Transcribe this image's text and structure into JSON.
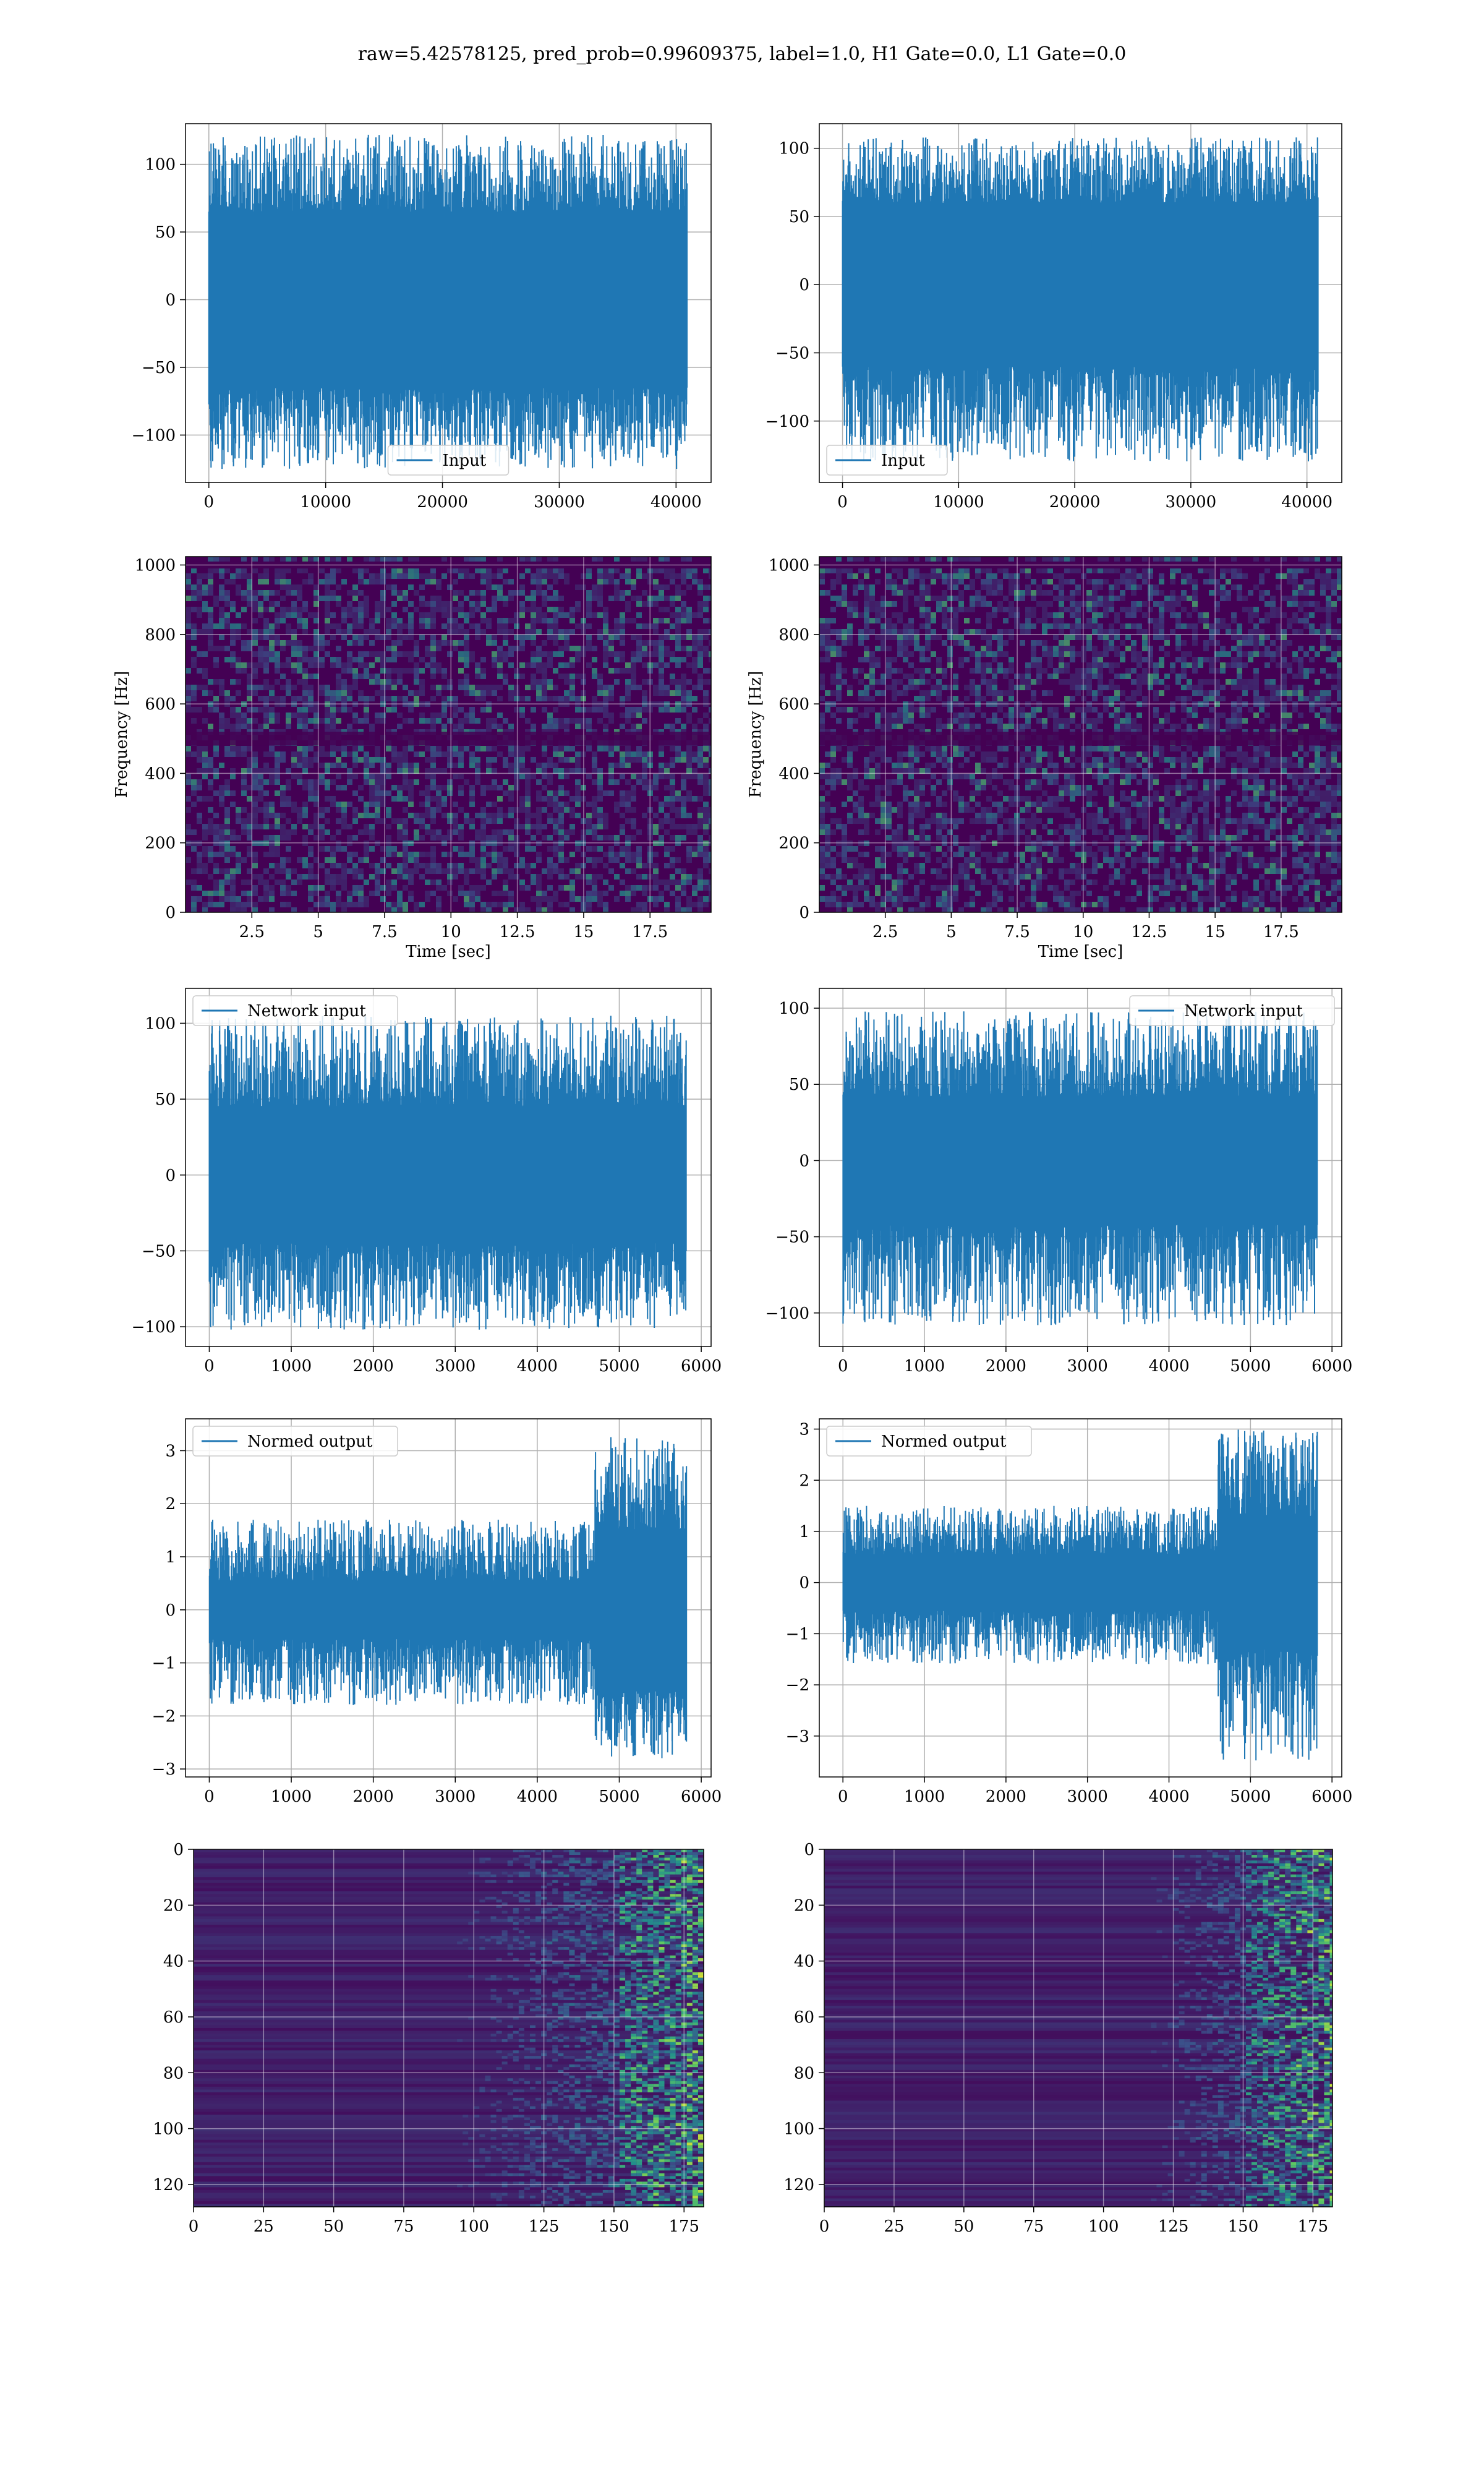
{
  "title": "raw=5.42578125, pred_prob=0.99609375, label=1.0, H1 Gate=0.0, L1 Gate=0.0",
  "colors": {
    "line": "#1f77b4",
    "grid": "#b0b0b0",
    "viridis_low": "#440154",
    "viridis_mid": "#21918c",
    "viridis_high": "#fde725"
  },
  "chart_data": [
    {
      "id": "input-h1",
      "type": "line",
      "row": 1,
      "col": 1,
      "legend": "Input",
      "legend_loc": "lower center",
      "xlim": [
        -2000,
        43000
      ],
      "ylim": [
        -135,
        130
      ],
      "xticks": [
        0,
        10000,
        20000,
        30000,
        40000
      ],
      "yticks": [
        -100,
        -50,
        0,
        50,
        100
      ],
      "x_range": [
        0,
        40960
      ],
      "band": [
        -65,
        65
      ],
      "spike_max": 122,
      "spike_min": -125
    },
    {
      "id": "input-l1",
      "type": "line",
      "row": 1,
      "col": 2,
      "legend": "Input",
      "legend_loc": "lower left",
      "xlim": [
        -2000,
        43000
      ],
      "ylim": [
        -145,
        118
      ],
      "xticks": [
        0,
        10000,
        20000,
        30000,
        40000
      ],
      "yticks": [
        -100,
        -50,
        0,
        50,
        100
      ],
      "x_range": [
        0,
        40960
      ],
      "band": [
        -60,
        60
      ],
      "spike_max": 108,
      "spike_min": -130
    },
    {
      "id": "spec-h1",
      "type": "heatmap",
      "row": 2,
      "col": 1,
      "xlabel": "Time [sec]",
      "ylabel": "Frequency [Hz]",
      "xlim": [
        0,
        19.8
      ],
      "ylim": [
        0,
        1024
      ],
      "xticks": [
        2.5,
        5.0,
        7.5,
        10.0,
        12.5,
        15.0,
        17.5
      ],
      "yticks": [
        0,
        200,
        400,
        600,
        800,
        1000
      ]
    },
    {
      "id": "spec-l1",
      "type": "heatmap",
      "row": 2,
      "col": 2,
      "xlabel": "Time [sec]",
      "ylabel": "Frequency [Hz]",
      "xlim": [
        0,
        19.8
      ],
      "ylim": [
        0,
        1024
      ],
      "xticks": [
        2.5,
        5.0,
        7.5,
        10.0,
        12.5,
        15.0,
        17.5
      ],
      "yticks": [
        0,
        200,
        400,
        600,
        800,
        1000
      ]
    },
    {
      "id": "netin-h1",
      "type": "line",
      "row": 3,
      "col": 1,
      "legend": "Network input",
      "legend_loc": "upper left",
      "xlim": [
        -290,
        6120
      ],
      "ylim": [
        -113,
        123
      ],
      "xticks": [
        0,
        1000,
        2000,
        3000,
        4000,
        5000,
        6000
      ],
      "yticks": [
        -100,
        -50,
        0,
        50,
        100
      ],
      "x_range": [
        0,
        5820
      ],
      "band": [
        -45,
        45
      ],
      "spike_max": 105,
      "spike_min": -102
    },
    {
      "id": "netin-l1",
      "type": "line",
      "row": 3,
      "col": 2,
      "legend": "Network input",
      "legend_loc": "upper right",
      "xlim": [
        -290,
        6120
      ],
      "ylim": [
        -122,
        113
      ],
      "xticks": [
        0,
        1000,
        2000,
        3000,
        4000,
        5000,
        6000
      ],
      "yticks": [
        -100,
        -50,
        0,
        50,
        100
      ],
      "x_range": [
        0,
        5820
      ],
      "band": [
        -42,
        42
      ],
      "spike_max": 98,
      "spike_min": -108
    },
    {
      "id": "normout-h1",
      "type": "line",
      "row": 4,
      "col": 1,
      "legend": "Normed output",
      "legend_loc": "upper left",
      "xlim": [
        -290,
        6120
      ],
      "ylim": [
        -3.15,
        3.6
      ],
      "xticks": [
        0,
        1000,
        2000,
        3000,
        4000,
        5000,
        6000
      ],
      "yticks": [
        -3,
        -2,
        -1,
        0,
        1,
        2,
        3
      ],
      "x_range": [
        0,
        5820
      ],
      "band": [
        -0.55,
        0.55
      ],
      "spike_max": 1.7,
      "spike_min": -1.8,
      "burst_start": 4700,
      "burst_band": [
        -1.5,
        1.5
      ],
      "burst_max": 3.3,
      "burst_min": -2.8
    },
    {
      "id": "normout-l1",
      "type": "line",
      "row": 4,
      "col": 2,
      "legend": "Normed output",
      "legend_loc": "upper left",
      "xlim": [
        -290,
        6120
      ],
      "ylim": [
        -3.8,
        3.2
      ],
      "xticks": [
        0,
        1000,
        2000,
        3000,
        4000,
        5000,
        6000
      ],
      "yticks": [
        -3,
        -2,
        -1,
        0,
        1,
        2,
        3
      ],
      "x_range": [
        0,
        5820
      ],
      "band": [
        -0.55,
        0.55
      ],
      "spike_max": 1.5,
      "spike_min": -1.6,
      "burst_start": 4600,
      "burst_band": [
        -1.3,
        1.3
      ],
      "burst_max": 3.0,
      "burst_min": -3.5
    },
    {
      "id": "feat-h1",
      "type": "heatmap",
      "row": 5,
      "col": 1,
      "xlim": [
        0,
        182
      ],
      "ylim": [
        128,
        0
      ],
      "inverted_y": true,
      "xticks": [
        0,
        25,
        50,
        75,
        100,
        125,
        150,
        175
      ],
      "yticks": [
        0,
        20,
        40,
        60,
        80,
        100,
        120
      ],
      "activity_start": 100
    },
    {
      "id": "feat-l1",
      "type": "heatmap",
      "row": 5,
      "col": 2,
      "xlim": [
        0,
        182
      ],
      "ylim": [
        128,
        0
      ],
      "inverted_y": true,
      "xticks": [
        0,
        25,
        50,
        75,
        100,
        125,
        150,
        175
      ],
      "yticks": [
        0,
        20,
        40,
        60,
        80,
        100,
        120
      ],
      "activity_start": 125
    }
  ]
}
